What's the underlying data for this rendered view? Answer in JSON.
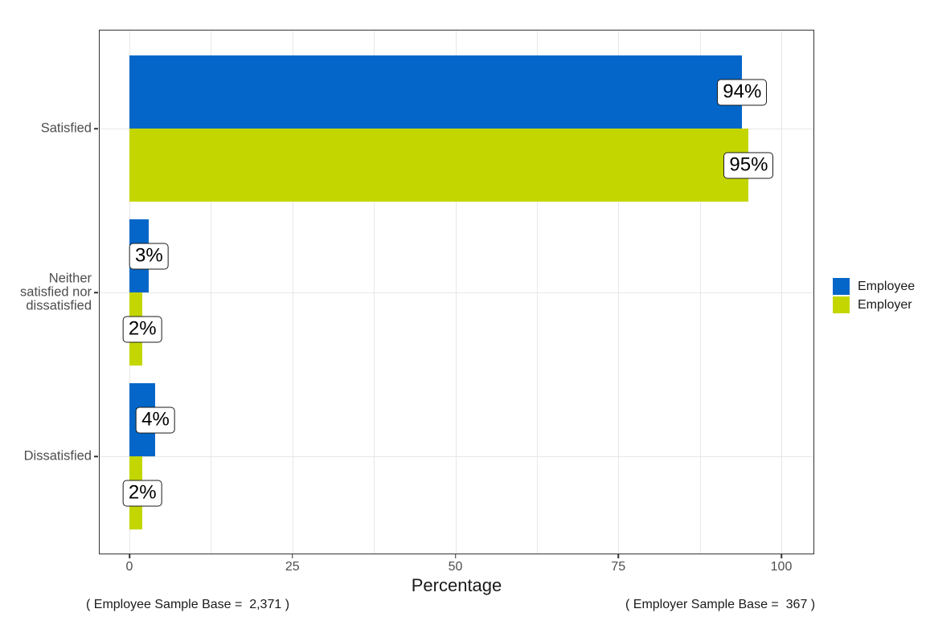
{
  "chart_data": {
    "type": "bar",
    "orientation": "horizontal",
    "title": "",
    "xlabel": "Percentage",
    "ylabel": "",
    "xlim": [
      0,
      100
    ],
    "x_ticks": [
      0,
      25,
      50,
      75,
      100
    ],
    "x_minor_step": 12.5,
    "grid": true,
    "legend_position": "right",
    "categories": [
      "Satisfied",
      "Neither satisfied nor dissatisfied",
      "Dissatisfied"
    ],
    "series": [
      {
        "name": "Employee",
        "color": "#0366C8",
        "values": [
          94,
          3,
          4
        ],
        "labels": [
          "94%",
          "3%",
          "4%"
        ]
      },
      {
        "name": "Employer",
        "color": "#C4D600",
        "values": [
          95,
          2,
          2
        ],
        "labels": [
          "95%",
          "2%",
          "2%"
        ]
      }
    ],
    "footnotes": [
      "( Employee Sample Base =  2,371 )",
      "( Employer Sample Base =  367 )"
    ]
  },
  "styles": {
    "grid_color": "#E7E7E7",
    "panel_border_color": "#333333",
    "axis_text_color": "#4D4D4D",
    "value_label_border": "#1A1A1A"
  }
}
